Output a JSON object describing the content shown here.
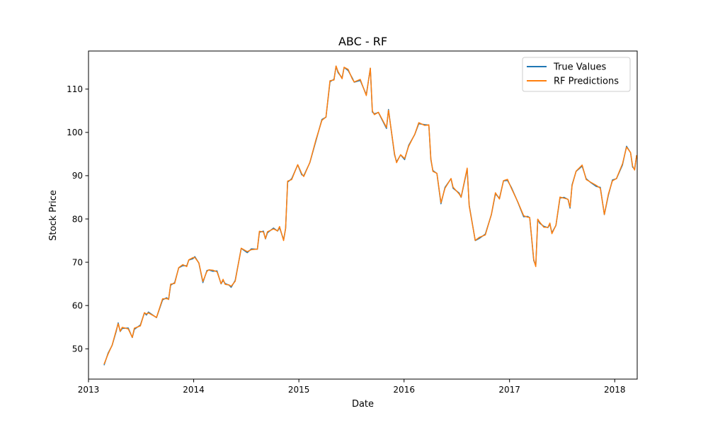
{
  "chart_data": {
    "type": "line",
    "title": "ABC - RF",
    "xlabel": "Date",
    "ylabel": "Stock Price",
    "xlim": [
      "2013-01-01",
      "2018-03-20"
    ],
    "ylim": [
      43,
      118.8
    ],
    "x_ticks": [
      "2013",
      "2014",
      "2015",
      "2016",
      "2017",
      "2018"
    ],
    "y_ticks": [
      50,
      60,
      70,
      80,
      90,
      100,
      110
    ],
    "grid": false,
    "legend_position": "top-right",
    "series": [
      {
        "name": "True Values",
        "color": "#1f77b4",
        "points": [
          [
            "2013-02-24",
            46.2
          ],
          [
            "2013-03-10",
            49.0
          ],
          [
            "2013-03-24",
            50.8
          ],
          [
            "2013-04-07",
            54.0
          ],
          [
            "2013-04-14",
            56.0
          ],
          [
            "2013-04-21",
            54.0
          ],
          [
            "2013-04-28",
            54.7
          ],
          [
            "2013-05-19",
            54.8
          ],
          [
            "2013-06-02",
            52.6
          ],
          [
            "2013-06-09",
            54.5
          ],
          [
            "2013-06-30",
            55.5
          ],
          [
            "2013-07-14",
            58.3
          ],
          [
            "2013-07-21",
            57.8
          ],
          [
            "2013-07-28",
            58.5
          ],
          [
            "2013-08-25",
            57.2
          ],
          [
            "2013-09-15",
            61.3
          ],
          [
            "2013-09-29",
            61.8
          ],
          [
            "2013-10-06",
            61.4
          ],
          [
            "2013-10-13",
            64.7
          ],
          [
            "2013-10-27",
            65.3
          ],
          [
            "2013-11-10",
            68.7
          ],
          [
            "2013-11-24",
            69.2
          ],
          [
            "2013-12-08",
            69.2
          ],
          [
            "2013-12-15",
            70.5
          ],
          [
            "2013-12-29",
            70.8
          ],
          [
            "2014-01-05",
            71.3
          ],
          [
            "2014-01-19",
            69.8
          ],
          [
            "2014-02-02",
            65.3
          ],
          [
            "2014-02-16",
            68.1
          ],
          [
            "2014-02-23",
            68.2
          ],
          [
            "2014-03-09",
            67.9
          ],
          [
            "2014-03-23",
            68.0
          ],
          [
            "2014-04-06",
            65.0
          ],
          [
            "2014-04-13",
            65.8
          ],
          [
            "2014-04-20",
            65.1
          ],
          [
            "2014-05-04",
            64.7
          ],
          [
            "2014-05-11",
            64.2
          ],
          [
            "2014-05-25",
            65.8
          ],
          [
            "2014-06-15",
            73.2
          ],
          [
            "2014-07-06",
            72.2
          ],
          [
            "2014-07-20",
            73.1
          ],
          [
            "2014-08-10",
            73.0
          ],
          [
            "2014-08-17",
            76.9
          ],
          [
            "2014-08-31",
            77.2
          ],
          [
            "2014-09-07",
            75.4
          ],
          [
            "2014-09-14",
            76.8
          ],
          [
            "2014-10-05",
            77.9
          ],
          [
            "2014-10-19",
            77.2
          ],
          [
            "2014-10-26",
            78.0
          ],
          [
            "2014-11-09",
            75.2
          ],
          [
            "2014-11-16",
            77.8
          ],
          [
            "2014-11-23",
            88.5
          ],
          [
            "2014-12-07",
            89.3
          ],
          [
            "2014-12-28",
            92.5
          ],
          [
            "2015-01-11",
            90.2
          ],
          [
            "2015-01-18",
            90.0
          ],
          [
            "2015-02-08",
            93.0
          ],
          [
            "2015-03-01",
            98.0
          ],
          [
            "2015-03-22",
            103.0
          ],
          [
            "2015-04-05",
            103.5
          ],
          [
            "2015-04-19",
            111.7
          ],
          [
            "2015-05-03",
            112.3
          ],
          [
            "2015-05-10",
            115.3
          ],
          [
            "2015-05-17",
            113.8
          ],
          [
            "2015-05-31",
            112.6
          ],
          [
            "2015-06-07",
            115.0
          ],
          [
            "2015-06-21",
            114.3
          ],
          [
            "2015-07-05",
            112.6
          ],
          [
            "2015-07-12",
            111.6
          ],
          [
            "2015-08-02",
            112.0
          ],
          [
            "2015-08-23",
            108.7
          ],
          [
            "2015-09-06",
            114.8
          ],
          [
            "2015-09-13",
            104.7
          ],
          [
            "2015-09-20",
            104.3
          ],
          [
            "2015-10-04",
            104.6
          ],
          [
            "2015-11-01",
            100.9
          ],
          [
            "2015-11-08",
            105.3
          ],
          [
            "2015-11-15",
            101.7
          ],
          [
            "2015-11-29",
            94.8
          ],
          [
            "2015-12-06",
            93.2
          ],
          [
            "2015-12-20",
            94.8
          ],
          [
            "2016-01-03",
            93.7
          ],
          [
            "2016-01-17",
            97.0
          ],
          [
            "2016-02-07",
            99.5
          ],
          [
            "2016-02-21",
            102.0
          ],
          [
            "2016-03-13",
            101.8
          ],
          [
            "2016-03-27",
            101.7
          ],
          [
            "2016-04-03",
            93.7
          ],
          [
            "2016-04-10",
            91.2
          ],
          [
            "2016-04-24",
            90.5
          ],
          [
            "2016-05-08",
            83.5
          ],
          [
            "2016-05-22",
            87.3
          ],
          [
            "2016-06-12",
            89.3
          ],
          [
            "2016-06-19",
            87.1
          ],
          [
            "2016-07-10",
            86.0
          ],
          [
            "2016-07-17",
            85.0
          ],
          [
            "2016-08-07",
            91.5
          ],
          [
            "2016-08-14",
            83.2
          ],
          [
            "2016-09-04",
            75.0
          ],
          [
            "2016-09-18",
            75.5
          ],
          [
            "2016-10-09",
            76.5
          ],
          [
            "2016-10-30",
            81.0
          ],
          [
            "2016-11-13",
            85.8
          ],
          [
            "2016-11-27",
            84.8
          ],
          [
            "2016-12-11",
            88.8
          ],
          [
            "2016-12-25",
            88.9
          ],
          [
            "2017-01-08",
            87.2
          ],
          [
            "2017-01-29",
            84.0
          ],
          [
            "2017-02-19",
            80.5
          ],
          [
            "2017-03-05",
            80.6
          ],
          [
            "2017-03-12",
            80.3
          ],
          [
            "2017-03-26",
            70.4
          ],
          [
            "2017-04-02",
            69.2
          ],
          [
            "2017-04-09",
            79.9
          ],
          [
            "2017-04-16",
            79.0
          ],
          [
            "2017-04-30",
            78.3
          ],
          [
            "2017-05-14",
            78.0
          ],
          [
            "2017-05-21",
            78.8
          ],
          [
            "2017-05-28",
            76.8
          ],
          [
            "2017-06-11",
            78.5
          ],
          [
            "2017-06-25",
            84.8
          ],
          [
            "2017-07-09",
            85.0
          ],
          [
            "2017-07-23",
            84.5
          ],
          [
            "2017-07-30",
            82.5
          ],
          [
            "2017-08-06",
            87.9
          ],
          [
            "2017-08-20",
            91.0
          ],
          [
            "2017-09-10",
            92.2
          ],
          [
            "2017-09-24",
            89.3
          ],
          [
            "2017-10-08",
            88.5
          ],
          [
            "2017-10-29",
            87.5
          ],
          [
            "2017-11-12",
            87.3
          ],
          [
            "2017-11-26",
            81.0
          ],
          [
            "2017-12-10",
            85.5
          ],
          [
            "2017-12-24",
            89.0
          ],
          [
            "2018-01-07",
            89.3
          ],
          [
            "2018-01-28",
            92.5
          ],
          [
            "2018-02-11",
            96.8
          ],
          [
            "2018-02-25",
            95.3
          ],
          [
            "2018-03-04",
            92.0
          ],
          [
            "2018-03-11",
            91.5
          ],
          [
            "2018-03-18",
            94.7
          ]
        ]
      },
      {
        "name": "RF Predictions",
        "color": "#ff7f0e",
        "points": []
      }
    ]
  }
}
